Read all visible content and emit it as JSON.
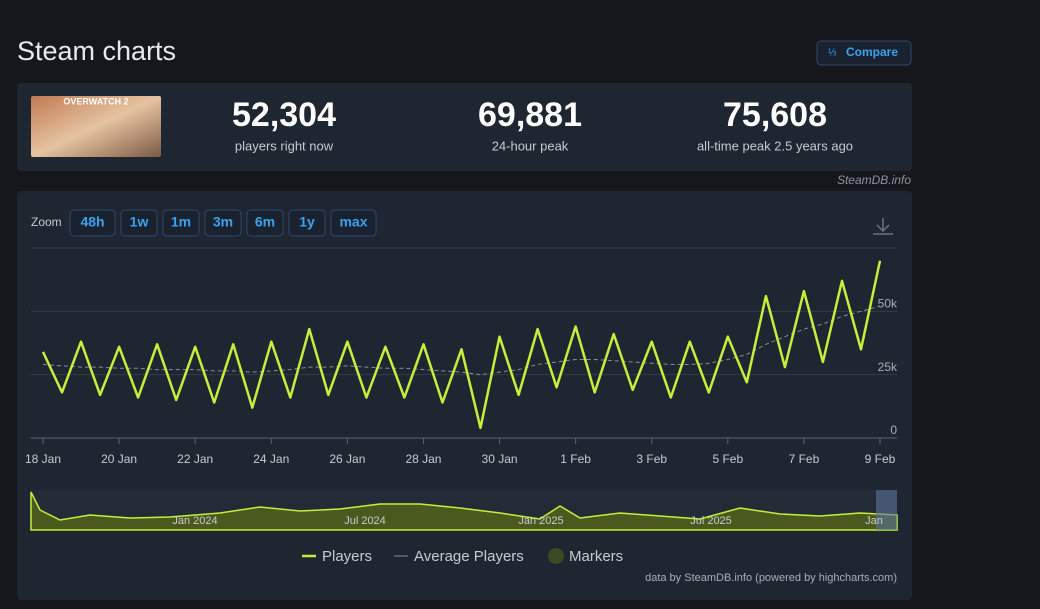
{
  "header": {
    "title": "Steam charts",
    "compare": "Compare"
  },
  "game": {
    "logo": "OVERWATCH 2"
  },
  "stats": [
    {
      "value": "52,304",
      "label": "players right now"
    },
    {
      "value": "69,881",
      "label": "24-hour peak"
    },
    {
      "value": "75,608",
      "label": "all-time peak 2.5 years ago"
    }
  ],
  "source": "SteamDB.info",
  "zoom": {
    "label": "Zoom",
    "buttons": [
      "48h",
      "1w",
      "1m",
      "3m",
      "6m",
      "1y",
      "max"
    ]
  },
  "navigator": {
    "labels": [
      "Jan 2024",
      "Jul 2024",
      "Jan 2025",
      "Jul 2025",
      "Jan"
    ]
  },
  "credit": "data by SteamDB.info (powered by highcharts.com)",
  "chart_data": {
    "type": "line",
    "categories": [
      "18 Jan",
      null,
      null,
      null,
      "20 Jan",
      null,
      null,
      null,
      "22 Jan",
      null,
      null,
      null,
      "24 Jan",
      null,
      null,
      null,
      "26 Jan",
      null,
      null,
      null,
      "28 Jan",
      null,
      null,
      null,
      "30 Jan",
      null,
      null,
      null,
      "1 Feb",
      null,
      null,
      null,
      "3 Feb",
      null,
      null,
      null,
      "5 Feb",
      null,
      null,
      null,
      "7 Feb",
      null,
      null,
      null,
      "9 Feb"
    ],
    "series": [
      {
        "name": "Players",
        "color": "#c4f03c",
        "values": [
          34000,
          18000,
          38000,
          17000,
          36000,
          16000,
          37000,
          15000,
          36000,
          14000,
          37000,
          12000,
          38000,
          16000,
          43000,
          17000,
          38000,
          16000,
          36000,
          16000,
          37000,
          14000,
          35000,
          4000,
          40000,
          17000,
          43000,
          20000,
          44000,
          18000,
          41000,
          19000,
          38000,
          16000,
          38000,
          18000,
          40000,
          22000,
          56000,
          28000,
          58000,
          30000,
          62000,
          35000,
          70000
        ]
      },
      {
        "name": "Average Players",
        "color": "#8a8f98",
        "values": [
          29000,
          28500,
          28000,
          28000,
          27500,
          27500,
          27000,
          27000,
          27000,
          26500,
          26500,
          26000,
          26500,
          27000,
          28000,
          28000,
          28500,
          28000,
          27500,
          27500,
          27000,
          26500,
          26000,
          25000,
          26000,
          27000,
          29000,
          30000,
          31000,
          31000,
          30500,
          30000,
          29500,
          29000,
          29000,
          29500,
          31000,
          33000,
          37000,
          40000,
          43000,
          45000,
          48000,
          50000,
          52000
        ]
      }
    ],
    "marker_legend": "Markers",
    "ylim": [
      0,
      75000
    ],
    "yticks": [
      0,
      {
        "value": 25000,
        "label": "25k"
      },
      {
        "value": 50000,
        "label": "50k"
      }
    ],
    "grid": true
  }
}
